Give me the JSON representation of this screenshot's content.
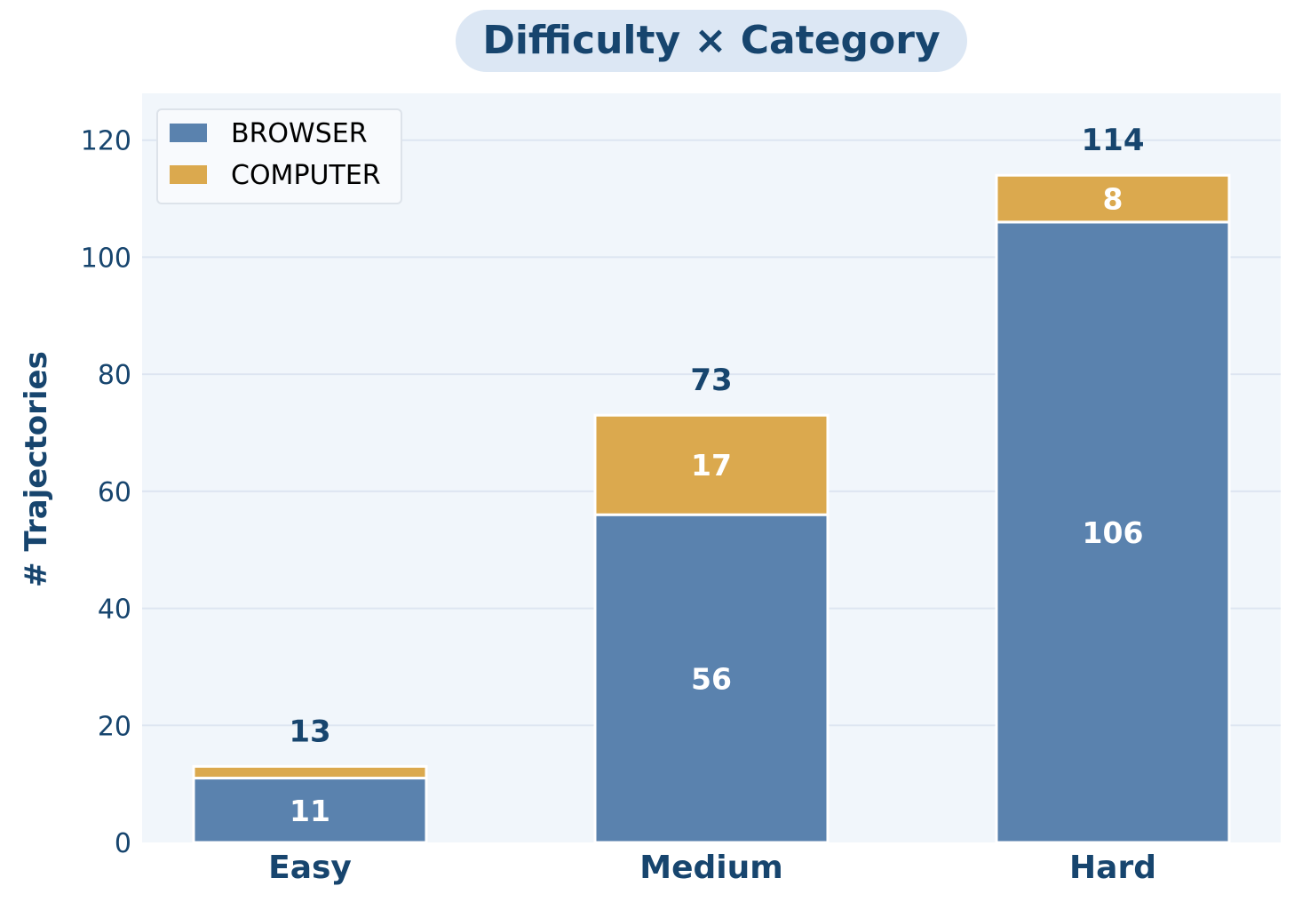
{
  "chart_data": {
    "type": "bar",
    "stacked": true,
    "title": "Difficulty × Category",
    "xlabel": "",
    "ylabel": "# Trajectories",
    "categories": [
      "Easy",
      "Medium",
      "Hard"
    ],
    "series": [
      {
        "name": "BROWSER",
        "values": [
          11,
          56,
          106
        ],
        "color": "#5a82ae"
      },
      {
        "name": "COMPUTER",
        "values": [
          2,
          17,
          8
        ],
        "color": "#dba94e"
      }
    ],
    "segment_labels": [
      [
        "11",
        "56",
        "106"
      ],
      [
        "",
        "17",
        "8"
      ]
    ],
    "totals": [
      13,
      73,
      114
    ],
    "ylim": [
      0,
      128
    ],
    "yticks": [
      0,
      20,
      40,
      60,
      80,
      100,
      120
    ],
    "grid": "horizontal",
    "legend": "top-left",
    "colors": {
      "title_text": "#17456e",
      "title_background": "#dce7f4",
      "plot_background": "#f1f6fb",
      "grid": "#dde5f1"
    }
  }
}
